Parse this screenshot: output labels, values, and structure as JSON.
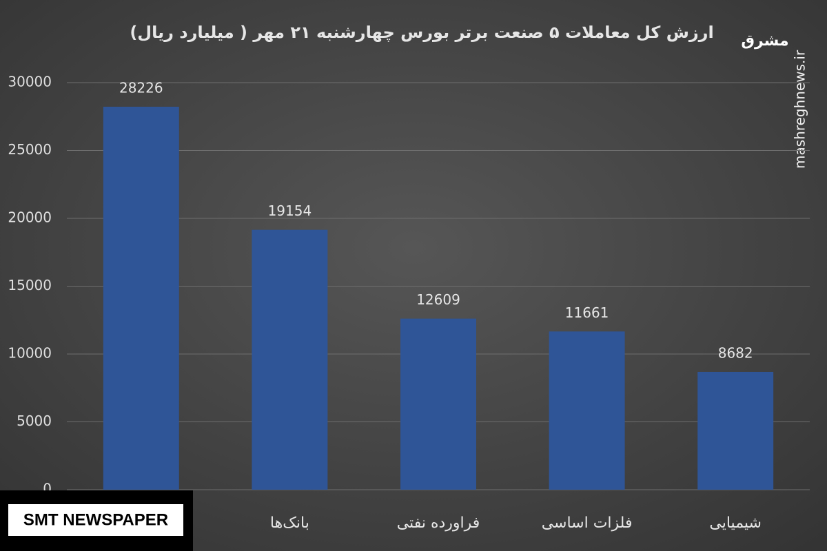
{
  "chart_data": {
    "type": "bar",
    "title": "ارزش کل معاملات ۵ صنعت برتر بورس چهارشنبه ۲۱ مهر ( میلیارد ریال)",
    "categories": [
      null,
      "بانک‌ها",
      "فراورده نفتی",
      "فلزات اساسی",
      "شیمیایی"
    ],
    "values": [
      28226,
      19154,
      12609,
      11661,
      8682
    ],
    "color": "#2f5597",
    "ylim": [
      0,
      30000
    ],
    "yticks": [
      0,
      5000,
      10000,
      15000,
      20000,
      25000,
      30000
    ],
    "grid": true
  },
  "watermark": {
    "logo": "مشرق",
    "site": "mashreghnews.ir"
  },
  "badge": "SMT NEWSPAPER"
}
